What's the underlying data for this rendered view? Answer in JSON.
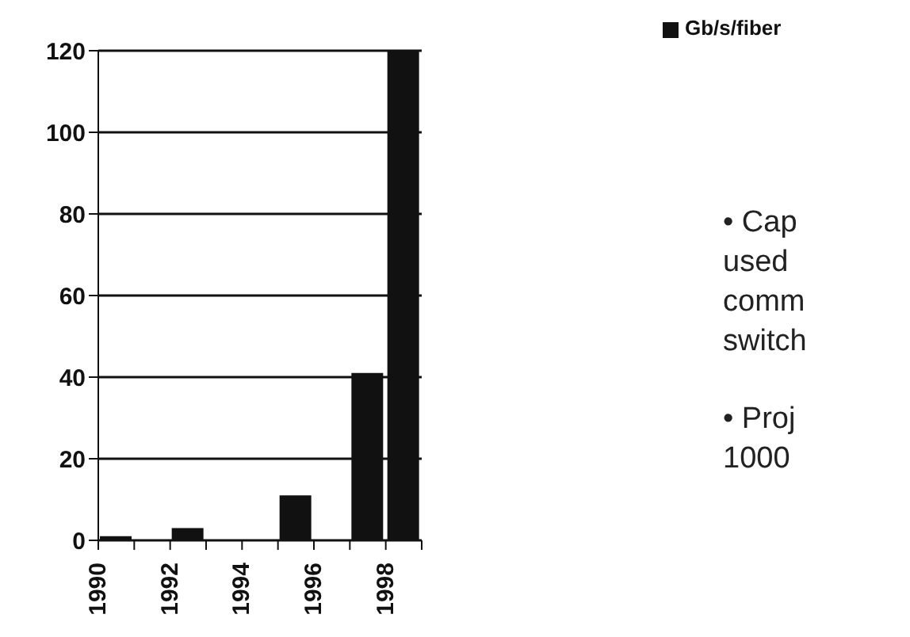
{
  "chart_data": {
    "type": "bar",
    "x": [
      1990.5,
      1992.5,
      1995.5,
      1997.5,
      1998.5
    ],
    "series": [
      {
        "name": "Gb/s/fiber",
        "color": "#111111",
        "values": [
          1,
          3,
          11,
          41,
          120
        ]
      }
    ],
    "xlim": [
      1990,
      1999
    ],
    "xticks": [
      1990,
      {
        "value": 1991,
        "label": null
      },
      1992,
      {
        "value": 1993,
        "label": null
      },
      1994,
      {
        "value": 1995,
        "label": null
      },
      1996,
      {
        "value": 1997,
        "label": null
      },
      1998,
      {
        "value": 1999,
        "label": null
      }
    ],
    "ylim": [
      0,
      120
    ],
    "yticks": [
      0,
      20,
      40,
      60,
      80,
      100,
      120
    ],
    "grid": "y",
    "legend": "top right",
    "annotations": [
      "• Cap\nused\ncomm\nswitch",
      "• Proj\n1000"
    ]
  }
}
